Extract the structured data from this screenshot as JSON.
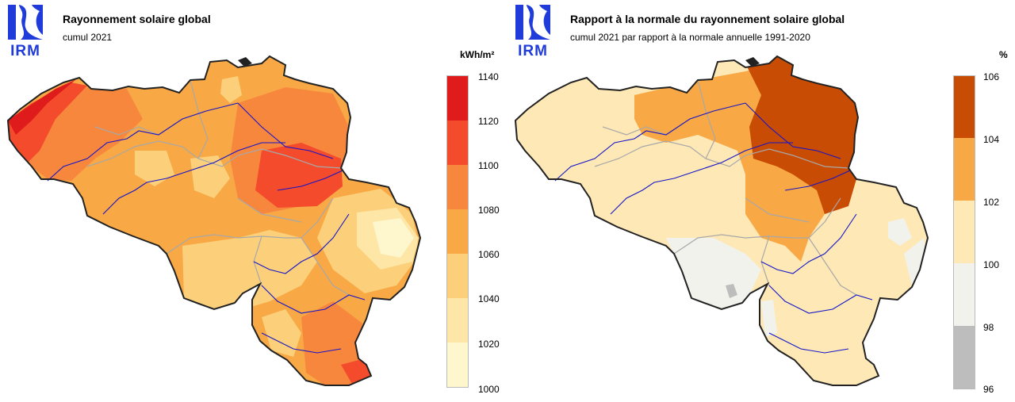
{
  "logo": {
    "text": "IRM",
    "color": "#1f3bd9"
  },
  "left": {
    "title": "Rayonnement solaire global",
    "subtitle": "cumul 2021",
    "unit": "kWh/m²",
    "legend": {
      "ticks": [
        "1140",
        "1120",
        "1100",
        "1080",
        "1060",
        "1040",
        "1020",
        "1000"
      ],
      "colors": [
        "#e01b1b",
        "#f44b2c",
        "#f8873e",
        "#f8a845",
        "#fcd07a",
        "#fde6a6",
        "#fef6cc"
      ]
    }
  },
  "right": {
    "title": "Rapport à la normale du rayonnement solaire global",
    "subtitle": "cumul 2021 par rapport à la normale annuelle 1991-2020",
    "unit": "%",
    "legend": {
      "ticks": [
        "106",
        "104",
        "102",
        "100",
        "98",
        "96"
      ],
      "colors": [
        "#c94c04",
        "#f8a845",
        "#fde8b6",
        "#f2f2ec",
        "#bdbdbd"
      ]
    }
  },
  "colors": {
    "border": "#222222",
    "rivers": "#1515c8",
    "provinces": "#a8a8a8"
  }
}
